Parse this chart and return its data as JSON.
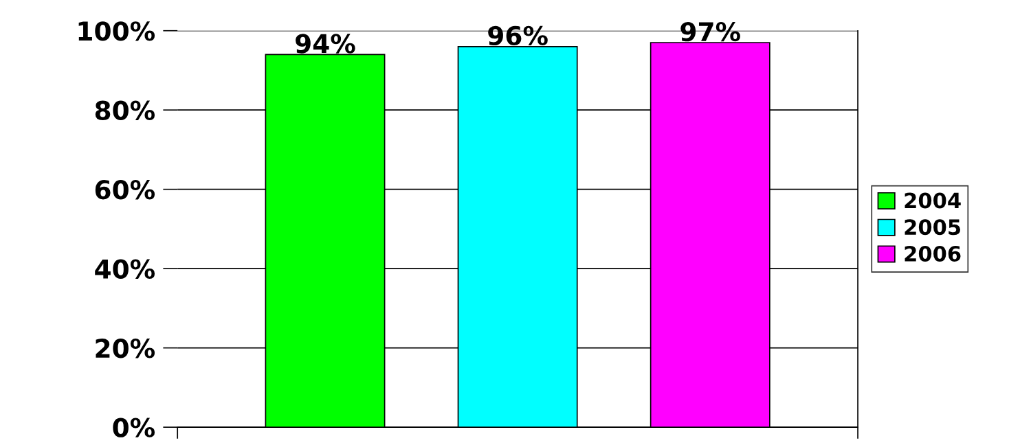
{
  "chart_data": {
    "type": "bar",
    "categories": [
      null
    ],
    "series": [
      {
        "name": "2004",
        "color": "#00ff00",
        "values": [
          94
        ],
        "value_labels": [
          "94%"
        ]
      },
      {
        "name": "2005",
        "color": "#00ffff",
        "values": [
          96
        ],
        "value_labels": [
          "96%"
        ]
      },
      {
        "name": "2006",
        "color": "#ff00ff",
        "values": [
          97
        ],
        "value_labels": [
          "97%"
        ]
      }
    ],
    "ylim": [
      0,
      100
    ],
    "yticks": [
      {
        "value": 0,
        "label": "0%"
      },
      {
        "value": 20,
        "label": "20%"
      },
      {
        "value": 40,
        "label": "40%"
      },
      {
        "value": 60,
        "label": "60%"
      },
      {
        "value": 80,
        "label": "80%"
      },
      {
        "value": 100,
        "label": "100%"
      }
    ],
    "grid": "y",
    "legend": "right"
  }
}
